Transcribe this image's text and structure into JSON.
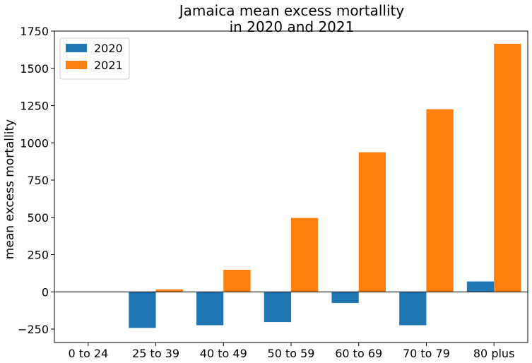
{
  "chart_data": {
    "type": "bar",
    "title_lines": [
      "Jamaica mean excess mortallity",
      "in 2020 and 2021"
    ],
    "xlabel": "",
    "ylabel": "mean excess mortallity",
    "categories": [
      "0 to 24",
      "25 to 39",
      "40 to 49",
      "50 to 59",
      "60 to 69",
      "70 to 79",
      "80 plus"
    ],
    "series": [
      {
        "name": "2020",
        "color": "#1f77b4",
        "values": [
          0,
          -242,
          -224,
          -203,
          -75,
          -224,
          70
        ]
      },
      {
        "name": "2021",
        "color": "#ff7f0e",
        "values": [
          0,
          17,
          148,
          496,
          937,
          1226,
          1665
        ]
      }
    ],
    "ylim": [
      -340,
      1750
    ],
    "yticks": [
      -250,
      0,
      250,
      500,
      750,
      1000,
      1250,
      1500,
      1750
    ],
    "zero_line": true,
    "grid": false,
    "legend_position": "top-left"
  }
}
